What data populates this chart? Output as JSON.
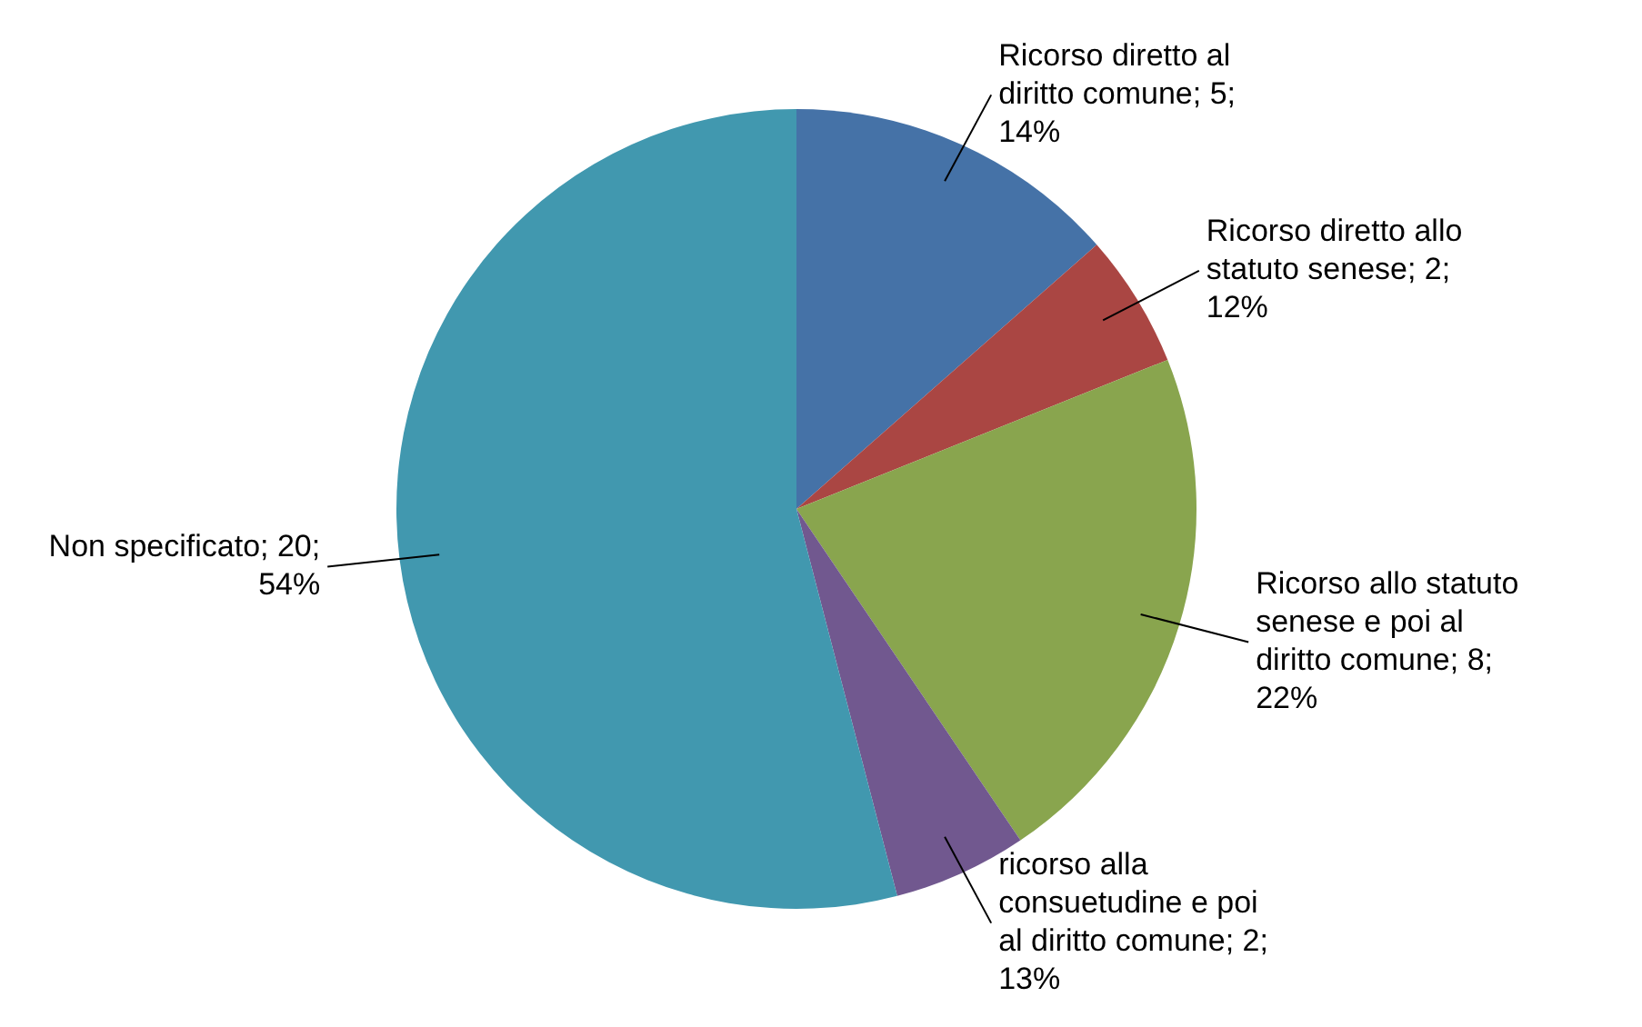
{
  "chart_data": {
    "type": "pie",
    "categories": [
      "Ricorso diretto al diritto comune",
      "Ricorso diretto allo statuto senese",
      "Ricorso allo statuto senese e poi al diritto comune",
      "ricorso alla consuetudine e poi al diritto comune",
      "Non specificato"
    ],
    "values": [
      5,
      2,
      8,
      2,
      20
    ],
    "value_labels": [
      "5; 14%",
      "2; 12%",
      "8; 22%",
      "2; 13%",
      "20; 54%"
    ],
    "colors": [
      "#4572a7",
      "#aa4643",
      "#89a54e",
      "#71588f",
      "#4198af"
    ],
    "legend": false
  }
}
